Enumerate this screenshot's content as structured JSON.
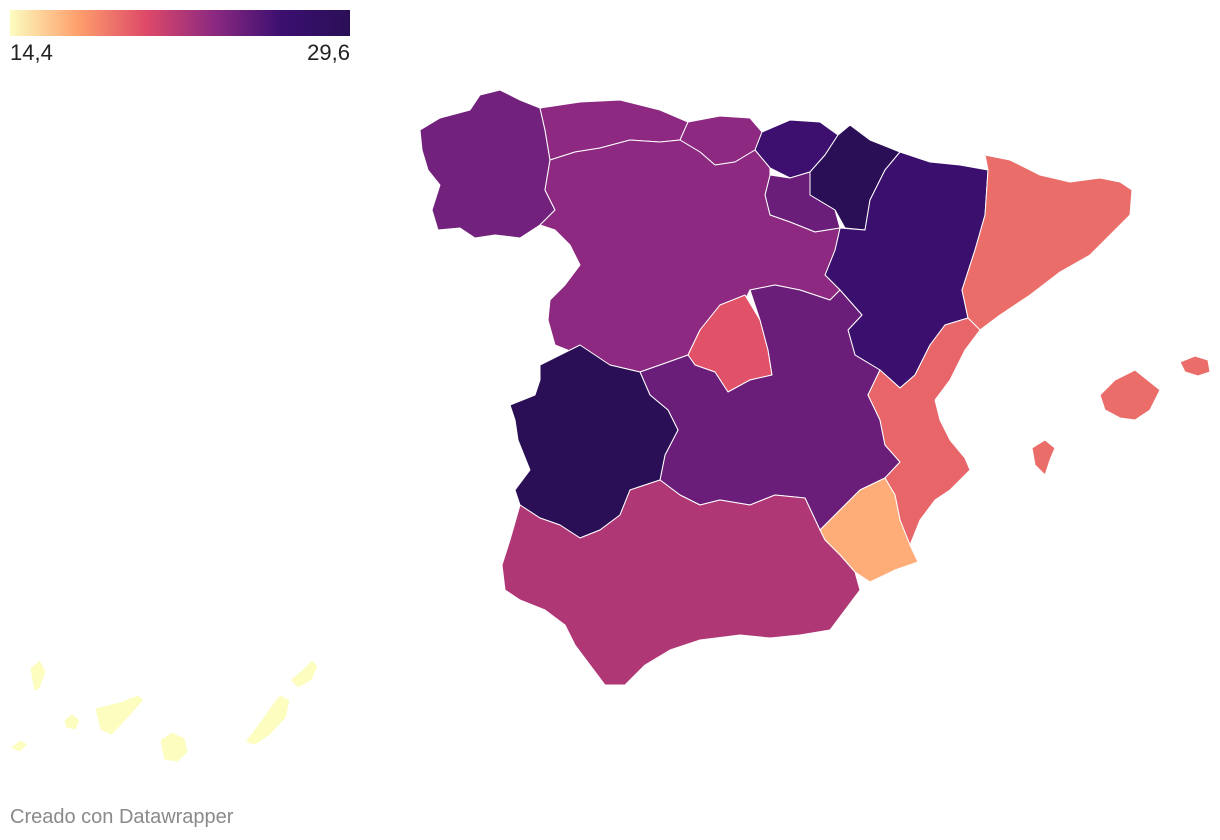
{
  "legend": {
    "min_label": "14,4",
    "max_label": "29,6",
    "min": 14.4,
    "max": 29.6,
    "colors": [
      "#fcfdbf",
      "#fe9f6d",
      "#de4968",
      "#8c2981",
      "#3b0f70",
      "#2a0f56"
    ]
  },
  "credit": "Creado con Datawrapper",
  "regions": {
    "galicia": 24.5,
    "asturias": 23.5,
    "cantabria": 23.5,
    "pais_vasco": 26.5,
    "navarra": 29.6,
    "la_rioja": 24.8,
    "aragon": 26.8,
    "cataluna": 19.2,
    "castilla_y_leon": 23.5,
    "madrid": 20.2,
    "castilla_la_mancha": 24.8,
    "extremadura": 29.6,
    "comunidad_valenciana": 19.5,
    "murcia": 17.0,
    "andalucia": 22.2,
    "baleares": 19.2,
    "canarias": 14.4
  }
}
